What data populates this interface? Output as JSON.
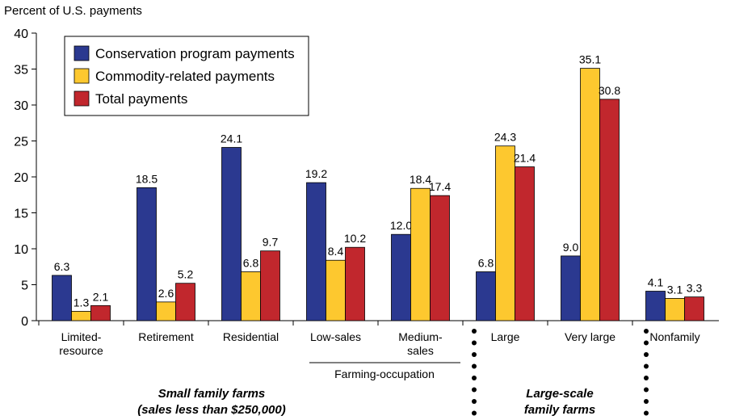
{
  "chart_data": {
    "type": "bar",
    "y_label": "Percent of U.S. payments",
    "categories": [
      "Limited-\nresource",
      "Retirement",
      "Residential",
      "Low-sales",
      "Medium-\nsales",
      "Large",
      "Very large",
      "Nonfamily"
    ],
    "series": [
      {
        "name": "Conservation program payments",
        "color": "#2b3990",
        "values": [
          6.3,
          18.5,
          24.1,
          19.2,
          12.0,
          6.8,
          9.0,
          4.1
        ],
        "value_labels": [
          "6.3",
          "18.5",
          "24.1",
          "19.2",
          "12.0",
          "6.8",
          "9.0",
          "4.1"
        ]
      },
      {
        "name": "Commodity-related payments",
        "color": "#fdc82f",
        "values": [
          1.3,
          2.6,
          6.8,
          8.4,
          18.4,
          24.3,
          35.1,
          3.1
        ],
        "value_labels": [
          "1.3",
          "2.6",
          "6.8",
          "8.4",
          "18.4",
          "24.3",
          "35.1",
          "3.1"
        ]
      },
      {
        "name": "Total payments",
        "color": "#c1272d",
        "values": [
          2.1,
          5.2,
          9.7,
          10.2,
          17.4,
          21.4,
          30.8,
          3.3
        ],
        "value_labels": [
          "2.1",
          "5.2",
          "9.7",
          "10.2",
          "17.4",
          "21.4",
          "30.8",
          "3.3"
        ]
      }
    ],
    "ylim": [
      0,
      40
    ],
    "yticks": [
      0,
      5,
      10,
      15,
      20,
      25,
      30,
      35,
      40
    ],
    "legend": "upper left",
    "annotations": [
      "Farming-occupation",
      "Small family farms\n(sales less than $250,000)",
      "Large-scale\nfamily farms"
    ]
  }
}
